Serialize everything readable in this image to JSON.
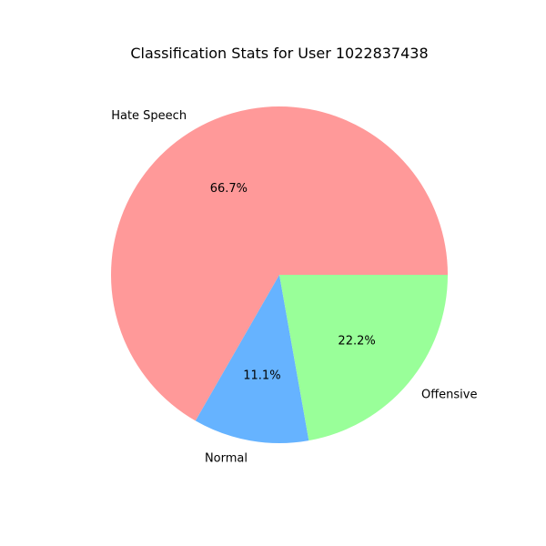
{
  "chart_data": {
    "type": "pie",
    "title": "Classification Stats for User 1022837438",
    "start_angle_deg": 0,
    "direction": "counterclockwise",
    "slices": [
      {
        "label": "Hate Speech",
        "value": 66.7,
        "pct_label": "66.7%",
        "color": "#ff9999"
      },
      {
        "label": "Normal",
        "value": 11.1,
        "pct_label": "11.1%",
        "color": "#66b3ff"
      },
      {
        "label": "Offensive",
        "value": 22.2,
        "pct_label": "22.2%",
        "color": "#99ff99"
      }
    ]
  }
}
